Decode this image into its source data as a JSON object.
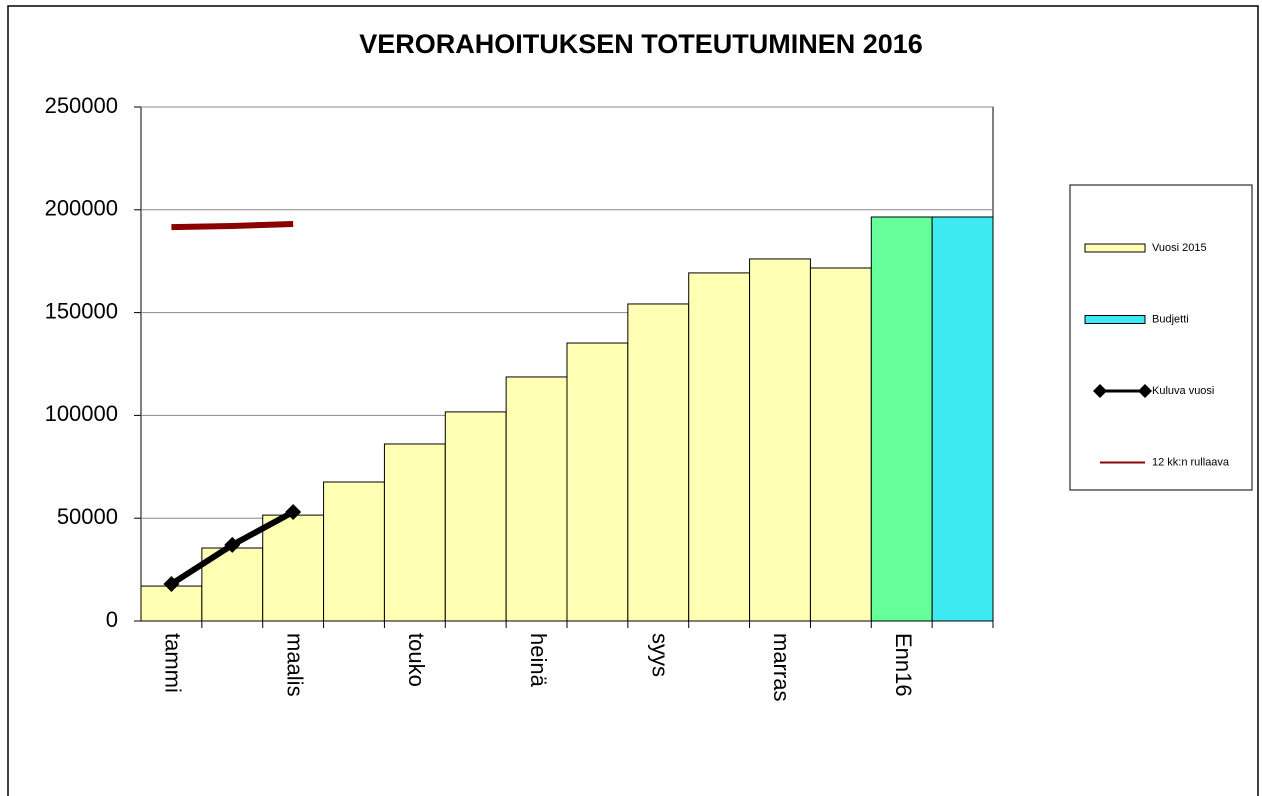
{
  "chart_data": {
    "type": "bar",
    "title": "VERORAHOITUKSEN TOTEUTUMINEN 2016",
    "categories": [
      "tammi",
      null,
      "maalis",
      null,
      "touko",
      null,
      "heinä",
      null,
      "syys",
      null,
      "marras",
      null,
      "Enn16",
      null
    ],
    "series": [
      {
        "name": "Vuosi 2015",
        "type": "bar",
        "color": "#ffffb3",
        "values": [
          17000,
          35500,
          51500,
          67600,
          86100,
          101700,
          118700,
          135200,
          154200,
          169300,
          176100,
          171700,
          null,
          null
        ]
      },
      {
        "name": "Budjetti",
        "type": "bar",
        "color": "#3deaf2",
        "colors": [
          null,
          null,
          null,
          null,
          null,
          null,
          null,
          null,
          null,
          null,
          null,
          null,
          "#66ff99",
          "#3deaf2"
        ],
        "values": [
          null,
          null,
          null,
          null,
          null,
          null,
          null,
          null,
          null,
          null,
          null,
          null,
          196500,
          196500
        ]
      },
      {
        "name": "Kuluva vuosi",
        "type": "line",
        "color": "#000000",
        "marker": "diamond",
        "values": [
          18000,
          37000,
          53000,
          null,
          null,
          null,
          null,
          null,
          null,
          null,
          null,
          null,
          null,
          null
        ]
      },
      {
        "name": "12 kk:n rullaava",
        "type": "line",
        "color": "#8b0000",
        "values": [
          191600,
          192100,
          193100,
          null,
          null,
          null,
          null,
          null,
          null,
          null,
          null,
          null,
          null,
          null
        ]
      }
    ],
    "ylim": [
      0,
      250000
    ],
    "yticks": [
      0,
      50000,
      100000,
      150000,
      200000,
      250000
    ],
    "grid": true,
    "legend": "right"
  }
}
